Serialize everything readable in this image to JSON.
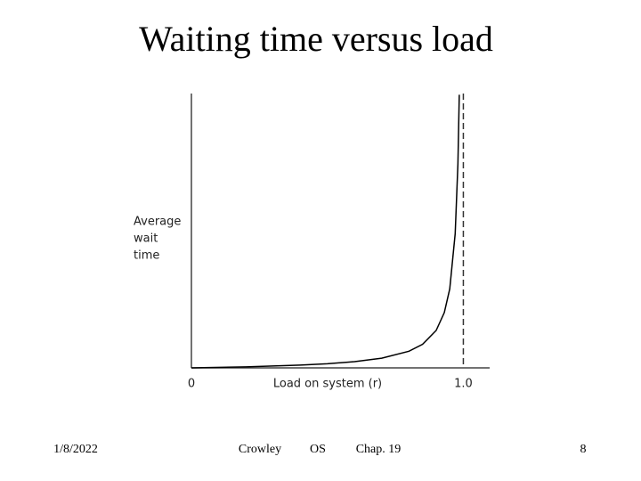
{
  "chart_data": {
    "type": "line",
    "title": "Waiting time versus load",
    "x_label": "Load on system (r)",
    "y_label": [
      "Average",
      "wait",
      "time"
    ],
    "x": [
      0,
      0.2,
      0.4,
      0.5,
      0.6,
      0.7,
      0.8,
      0.85,
      0.9,
      0.93,
      0.95,
      0.97,
      0.98,
      0.985
    ],
    "series": [
      {
        "color": "#000000",
        "values": [
          0,
          0.25,
          0.67,
          1,
          1.5,
          2.33,
          4,
          5.67,
          9,
          13.3,
          19,
          32.3,
          49,
          65.7
        ]
      }
    ],
    "xlim": [
      0,
      1.1
    ],
    "ylim": [
      0,
      66
    ],
    "xticks": [
      0,
      {
        "value": 1,
        "label": "1.0"
      }
    ],
    "asymptote": 1
  },
  "footer": {
    "date": "1/8/2022",
    "author": "Crowley",
    "course": "OS",
    "chapter": "Chap. 19",
    "page": "8"
  }
}
